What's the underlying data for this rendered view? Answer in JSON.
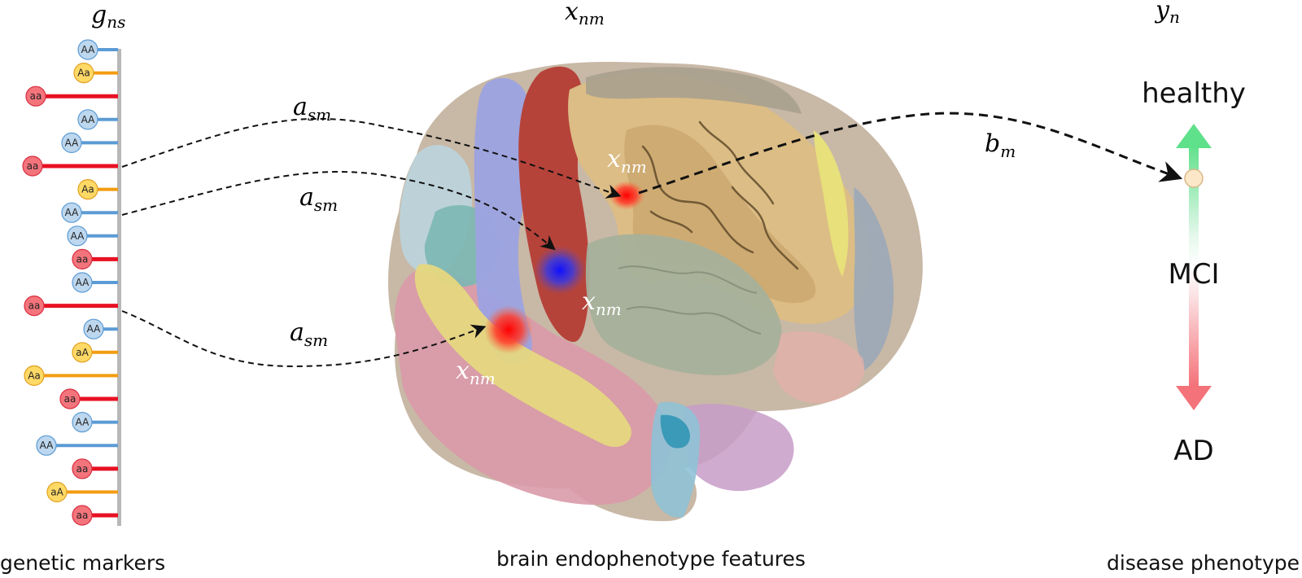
{
  "header": {
    "genetic_var": "g",
    "genetic_sub": "ns",
    "brain_var": "x",
    "brain_sub": "nm",
    "pheno_var": "y",
    "pheno_sub": "n"
  },
  "markers": [
    {
      "label": "AA",
      "type": "AA"
    },
    {
      "label": "Aa",
      "type": "Aa"
    },
    {
      "label": "aa",
      "type": "aa"
    },
    {
      "label": "AA",
      "type": "AA"
    },
    {
      "label": "AA",
      "type": "AA"
    },
    {
      "label": "aa",
      "type": "aa"
    },
    {
      "label": "Aa",
      "type": "Aa"
    },
    {
      "label": "AA",
      "type": "AA"
    },
    {
      "label": "AA",
      "type": "AA"
    },
    {
      "label": "aa",
      "type": "aa"
    },
    {
      "label": "AA",
      "type": "AA"
    },
    {
      "label": "aa",
      "type": "aa"
    },
    {
      "label": "AA",
      "type": "AA"
    },
    {
      "label": "aA",
      "type": "Aa"
    },
    {
      "label": "Aa",
      "type": "Aa"
    },
    {
      "label": "aa",
      "type": "aa"
    },
    {
      "label": "AA",
      "type": "AA"
    },
    {
      "label": "AA",
      "type": "AA"
    },
    {
      "label": "aa",
      "type": "aa"
    },
    {
      "label": "aA",
      "type": "Aa"
    },
    {
      "label": "aa",
      "type": "aa"
    }
  ],
  "colors": {
    "AA": "#5b9bd5",
    "AA_fill": "#bdd7ee",
    "Aa": "#f39c12",
    "Aa_fill": "#ffd966",
    "aa": "#e81123",
    "aa_fill": "#f4747c",
    "healthy_arrow": "#5fe08a",
    "ad_arrow": "#f4737a"
  },
  "edges": [
    {
      "var": "a",
      "sub": "sm"
    },
    {
      "var": "a",
      "sub": "sm"
    },
    {
      "var": "a",
      "sub": "sm"
    },
    {
      "var": "b",
      "sub": "m"
    }
  ],
  "region_labels": [
    {
      "var": "x",
      "sub": "nm"
    },
    {
      "var": "x",
      "sub": "nm"
    },
    {
      "var": "x",
      "sub": "nm"
    }
  ],
  "phenotype": {
    "top": "healthy",
    "middle": "MCI",
    "bottom": "AD"
  },
  "captions": {
    "left": "genetic markers",
    "center": "brain endophenotype features",
    "right": "disease phenotype"
  }
}
